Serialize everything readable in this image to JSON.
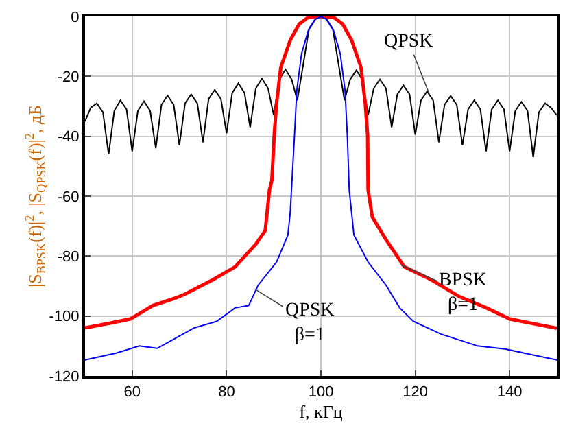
{
  "chart_data": {
    "type": "line",
    "xlabel": "f, кГц",
    "ylabel": "|S$_{BPSK}$(f)|$^{2}$, |S$_{QPSK}$(f)|$^{2}$, дБ",
    "xlim": [
      50,
      150
    ],
    "xticks": [
      60,
      80,
      100,
      120,
      140
    ],
    "ylim": [
      -120,
      0
    ],
    "yticks": [
      0,
      -20,
      -40,
      -60,
      -80,
      -100,
      -120
    ],
    "grid": true,
    "marker": "none",
    "line_style": "solid",
    "series": [
      {
        "color": "#000000",
        "x": [
          50,
          51.2,
          52.5,
          53.8,
          55,
          56.2,
          57.5,
          58.8,
          60,
          61.2,
          62.5,
          63.8,
          65,
          66.2,
          67.5,
          68.8,
          70,
          71.2,
          72.5,
          73.8,
          75,
          76.2,
          77.5,
          78.8,
          80,
          81.2,
          82.5,
          83.8,
          85,
          86.2,
          87.5,
          88.8,
          90,
          91.2,
          92.5,
          93.8,
          95,
          96.2,
          97.5,
          98.8,
          100,
          101.2,
          102.5,
          103.8,
          105,
          106.2,
          107.5,
          108.8,
          110,
          111.2,
          112.5,
          113.8,
          115,
          116.2,
          117.5,
          118.8,
          120,
          121.2,
          122.5,
          123.8,
          125,
          126.2,
          127.5,
          128.8,
          130,
          131.2,
          132.5,
          133.8,
          135,
          136.2,
          137.5,
          138.8,
          140,
          141.2,
          142.5,
          143.8,
          145,
          146.2,
          147.5,
          148.8,
          150
        ],
        "values": [
          -35,
          -30.5,
          -29,
          -32,
          -46,
          -31.5,
          -28,
          -31,
          -45,
          -31.5,
          -28.3,
          -31.5,
          -44,
          -29.5,
          -26.4,
          -29.5,
          -43,
          -29,
          -26,
          -29,
          -42,
          -27.5,
          -24.5,
          -27.5,
          -39,
          -25.5,
          -22.3,
          -25.5,
          -37,
          -24,
          -20.7,
          -24,
          -33,
          -21,
          -17.7,
          -21,
          -28,
          -16.5,
          -4,
          -0.9,
          0,
          -0.9,
          -4,
          -16.5,
          -28,
          -21,
          -18,
          -21,
          -33,
          -24,
          -21,
          -24,
          -37,
          -26,
          -23,
          -26,
          -39.5,
          -28,
          -25,
          -28,
          -42,
          -29.5,
          -26.5,
          -29.5,
          -43,
          -31,
          -28,
          -31,
          -45,
          -31,
          -28,
          -31,
          -45,
          -31.5,
          -28.5,
          -31.5,
          -47,
          -32,
          -29,
          -30.5,
          -33
        ]
      },
      {
        "color": "#ff0000",
        "x": [
          50,
          55,
          59.6,
          64.4,
          69.2,
          71.2,
          77,
          81.8,
          86.2,
          88.2,
          88.6,
          89.1,
          89.6,
          90.1,
          90.6,
          91.5,
          93.5,
          95.4,
          97.3,
          100,
          102.7,
          104.6,
          106.5,
          108.5,
          109.4,
          109.9,
          110,
          110.9,
          113.8,
          117.7,
          123.5,
          129.3,
          135.1,
          140,
          150
        ],
        "values": [
          -104,
          -102.5,
          -101,
          -96.5,
          -94,
          -92.7,
          -88,
          -83.6,
          -76,
          -71.5,
          -65.4,
          -57.8,
          -54.8,
          -39.7,
          -29,
          -17,
          -7.9,
          -2.5,
          -0.3,
          0,
          -0.3,
          -2.5,
          -7.9,
          -17,
          -29,
          -39.7,
          -57.9,
          -67,
          -74.5,
          -83.6,
          -88,
          -93.5,
          -97.3,
          -101,
          -104.1
        ]
      },
      {
        "color": "#0000ff",
        "x": [
          50,
          56.6,
          61.5,
          65.3,
          73.1,
          77.9,
          81.8,
          84.7,
          86.7,
          90.6,
          93,
          93.5,
          94.4,
          94.9,
          95.9,
          97.3,
          98.8,
          100,
          101.2,
          102.7,
          104.1,
          105.1,
          105.6,
          106,
          107,
          110,
          113.8,
          116.7,
          119.6,
          125.4,
          133.2,
          139,
          150
        ],
        "values": [
          -114.7,
          -112.4,
          -110,
          -110.8,
          -104,
          -101.8,
          -97.3,
          -96.5,
          -89.7,
          -82,
          -73,
          -65.4,
          -39.7,
          -24.5,
          -12.4,
          -4.8,
          -1,
          0,
          -1,
          -4.8,
          -12.4,
          -24.5,
          -39.7,
          -57.9,
          -73,
          -82,
          -89.7,
          -97.3,
          -101.8,
          -106,
          -110,
          -111,
          -114.7
        ]
      }
    ],
    "annotations": [
      {
        "text": "QPSK",
        "x": 123,
        "y": -26
      },
      {
        "text": "QPSK\nβ=1",
        "x": 86,
        "y": -91
      },
      {
        "text": "BPSK\nβ=1",
        "x": 117,
        "y": -83
      }
    ]
  }
}
